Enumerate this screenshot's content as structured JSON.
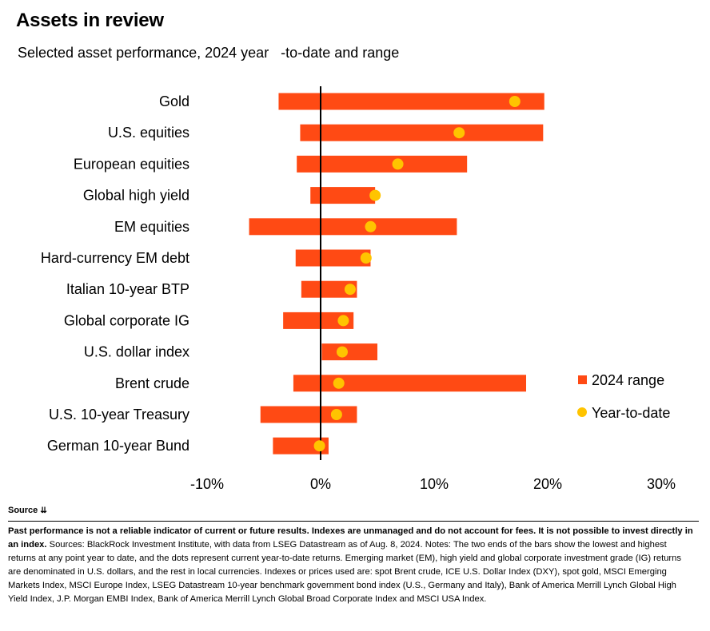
{
  "header": {
    "title": "Assets in review",
    "subtitle": "Selected asset performance, 2024 year   -to-date and range"
  },
  "colors": {
    "range": "#ff4a14",
    "ytd": "#ffc400",
    "axis": "#000000"
  },
  "chart_data": {
    "type": "bar",
    "orientation": "horizontal",
    "categories": [
      "Gold",
      "U.S. equities",
      "European equities",
      "Global high yield",
      "EM equities",
      "Hard-currency EM debt",
      "Italian 10-year BTP",
      "Global corporate IG",
      "U.S. dollar index",
      "Brent crude",
      "U.S. 10-year Treasury",
      "German 10-year Bund"
    ],
    "series": [
      {
        "name": "2024 range",
        "low": [
          -3.7,
          -1.8,
          -2.1,
          -0.9,
          -6.3,
          -2.2,
          -1.7,
          -3.3,
          0.1,
          -2.4,
          -5.3,
          -4.2
        ],
        "high": [
          19.7,
          19.6,
          12.9,
          4.8,
          12.0,
          4.4,
          3.2,
          2.9,
          5.0,
          18.1,
          3.2,
          0.7
        ]
      },
      {
        "name": "Year-to-date",
        "values": [
          17.1,
          12.2,
          6.8,
          4.8,
          4.4,
          4.0,
          2.6,
          2.0,
          1.9,
          1.6,
          1.4,
          -0.1
        ]
      }
    ],
    "xlim": [
      -10,
      30
    ],
    "xticks": [
      "-10%",
      "0%",
      "10%",
      "20%",
      "30%"
    ],
    "legend": {
      "position": "right",
      "entries": [
        "2024 range",
        "Year-to-date"
      ]
    }
  },
  "footer": {
    "source_label": "Source",
    "disclaimer": "Past performance is not a reliable indicator of current or future results. Indexes are unmanaged and do not account for fees. It is not possible to invest directly in an index.",
    "notes": "Sources: BlackRock Investment Institute, with data from LSEG Datastream as of Aug. 8, 2024. Notes: The two ends of the bars show the lowest and highest returns at any point year to date, and the dots represent current year-to-date returns. Emerging market (EM), high yield and global corporate investment grade (IG) returns are denominated in U.S. dollars, and the rest in local currencies. Indexes or prices used are: spot Brent crude, ICE U.S. Dollar Index (DXY), spot gold, MSCI Emerging Markets Index, MSCI Europe Index, LSEG Datastream 10-year benchmark government bond index (U.S., Germany and Italy), Bank of America Merrill Lynch Global High Yield Index, J.P. Morgan EMBI Index, Bank of America Merrill Lynch Global Broad Corporate Index and MSCI USA Index."
  }
}
